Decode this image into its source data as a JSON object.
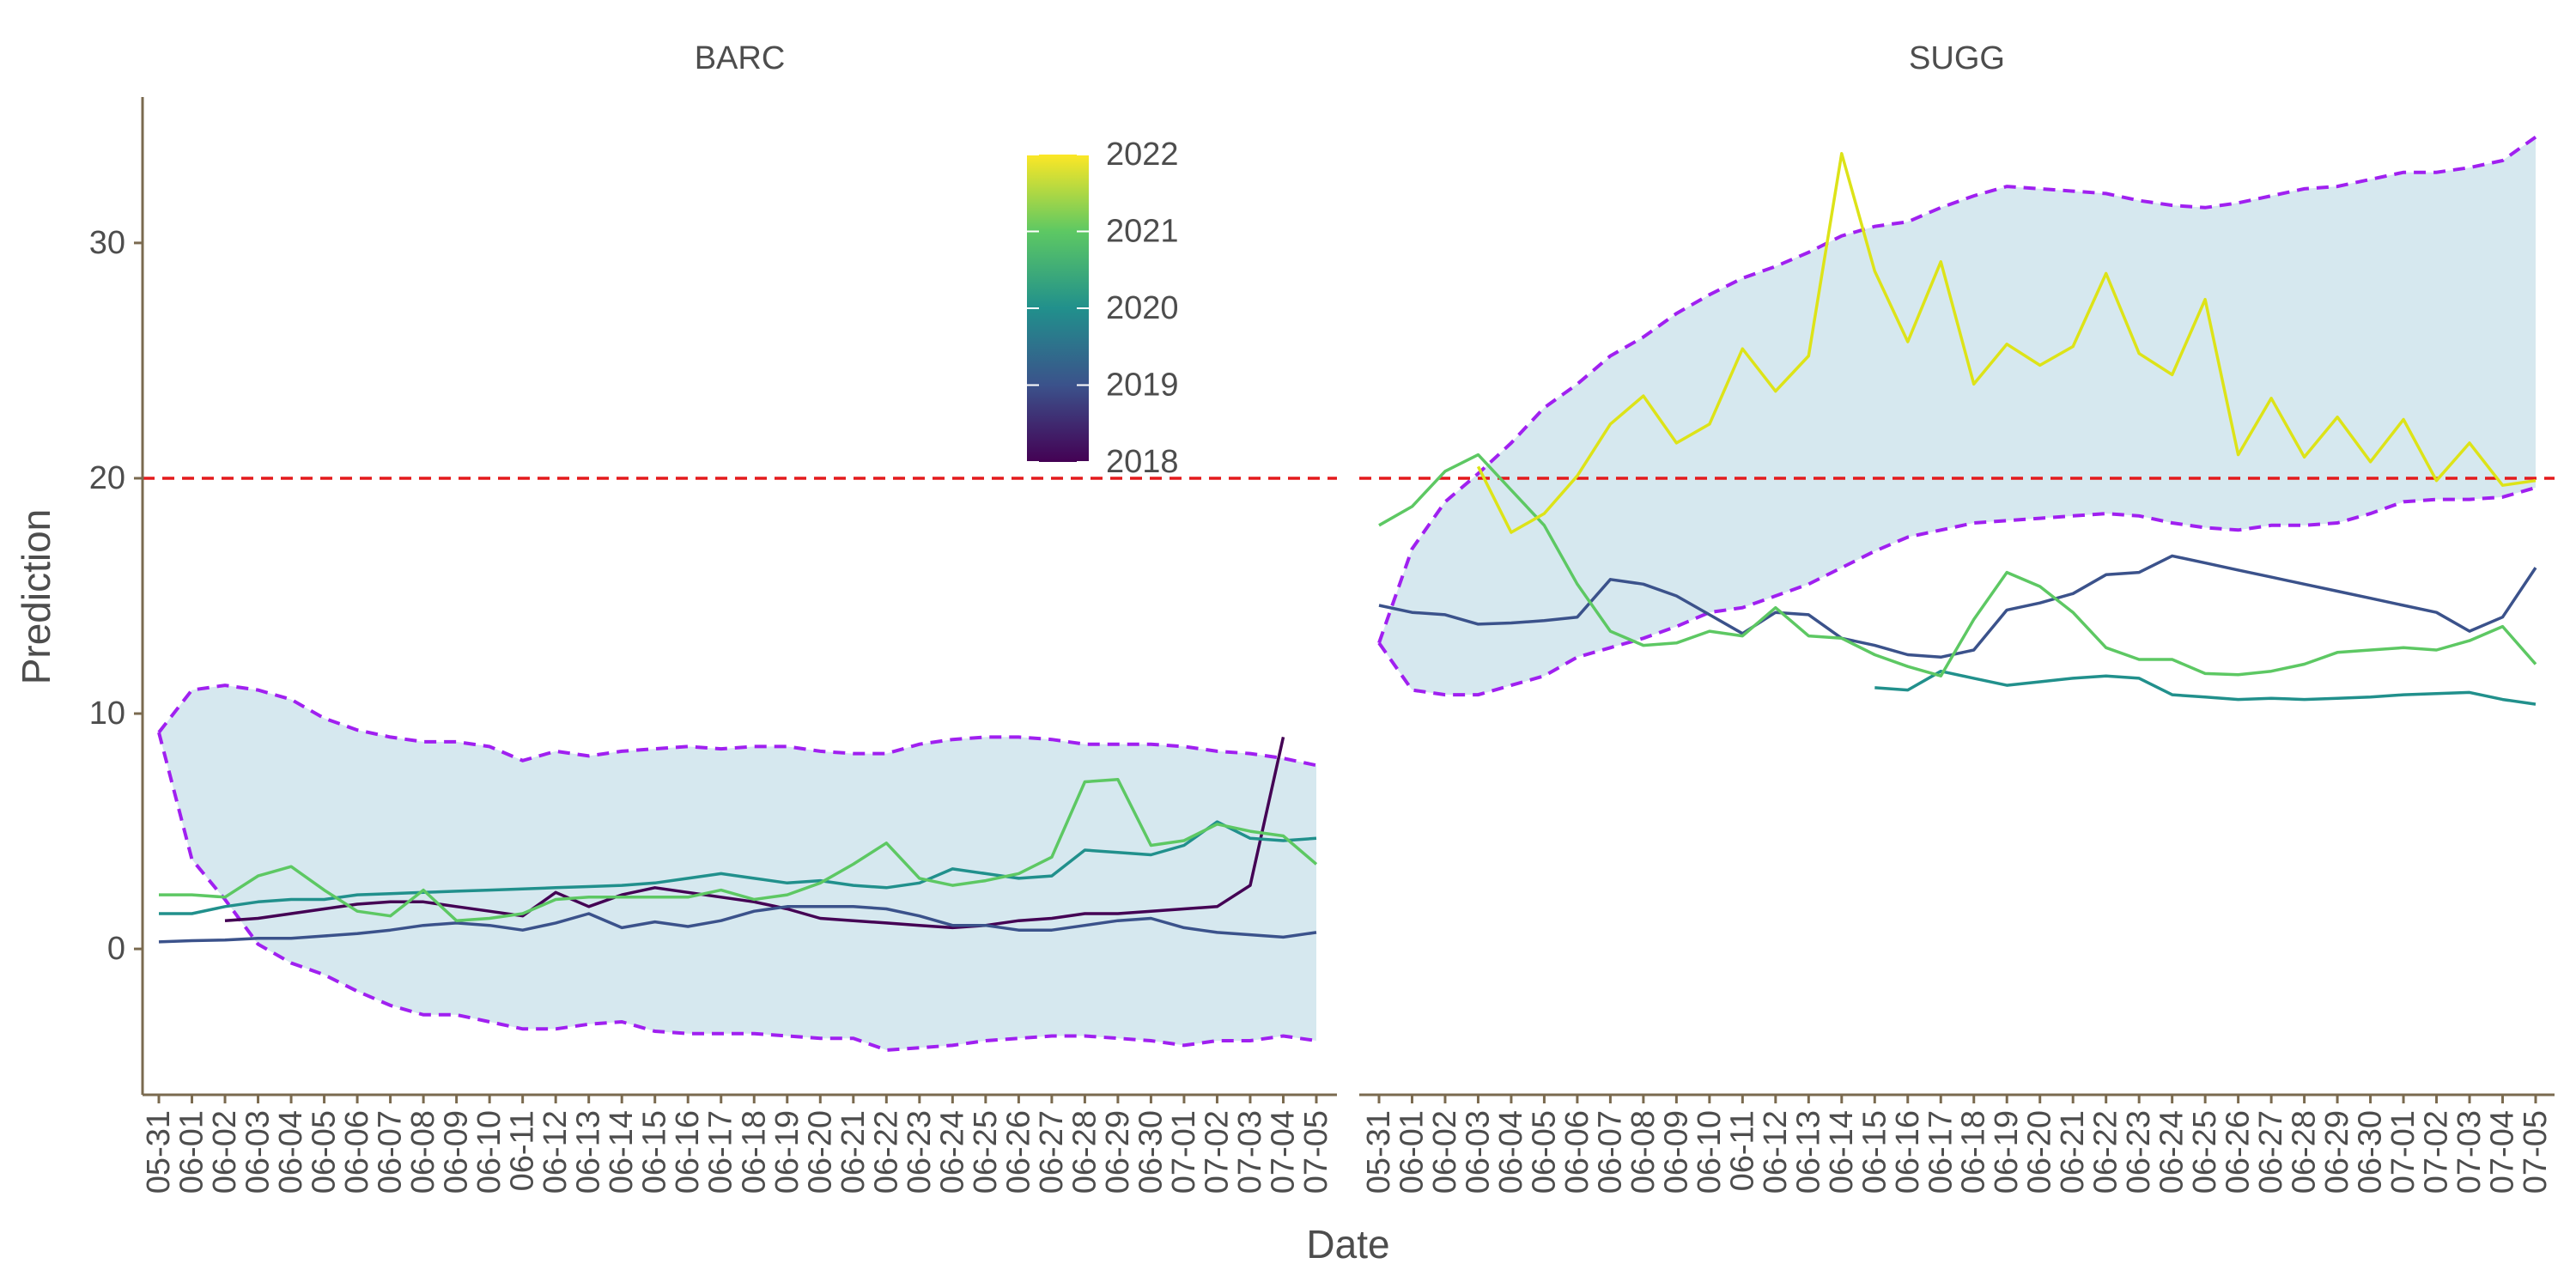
{
  "chart_data": {
    "type": "line",
    "xlabel": "Date",
    "ylabel": "Prediction",
    "ylim": [
      -6.2,
      36.2
    ],
    "y_ticks": [
      0,
      10,
      20,
      30
    ],
    "x_ticks": [
      "05-31",
      "06-01",
      "06-02",
      "06-03",
      "06-04",
      "06-05",
      "06-06",
      "06-07",
      "06-08",
      "06-09",
      "06-10",
      "06-11",
      "06-12",
      "06-13",
      "06-14",
      "06-15",
      "06-16",
      "06-17",
      "06-18",
      "06-19",
      "06-20",
      "06-21",
      "06-22",
      "06-23",
      "06-24",
      "06-25",
      "06-26",
      "06-27",
      "06-28",
      "06-29",
      "06-30",
      "07-01",
      "07-02",
      "07-03",
      "07-04",
      "07-05"
    ],
    "threshold": 20,
    "colors": {
      "threshold_line": "#e41a1c",
      "band_fill": "#d6e8ef",
      "band_edge": "#a020f0",
      "axis": "#7a6a4f",
      "2018": "#440154",
      "2019": "#3b528b",
      "2020": "#21908c",
      "2021": "#5dc863",
      "2022": "#dde318"
    },
    "legend": {
      "type": "colorbar",
      "placement": "top-center-left panel",
      "palette": "viridis",
      "labels": [
        "2022",
        "2021",
        "2020",
        "2019",
        "2018"
      ]
    },
    "grid": false,
    "panels": [
      {
        "title": "BARC",
        "band_upper": [
          9.2,
          11.0,
          11.2,
          11.0,
          10.6,
          9.8,
          9.3,
          9.0,
          8.8,
          8.8,
          8.6,
          8.0,
          8.4,
          8.2,
          8.4,
          8.5,
          8.6,
          8.5,
          8.6,
          8.6,
          8.4,
          8.3,
          8.3,
          8.7,
          8.9,
          9.0,
          9.0,
          8.9,
          8.7,
          8.7,
          8.7,
          8.6,
          8.4,
          8.3,
          8.1,
          7.8
        ],
        "band_lower": [
          9.2,
          3.8,
          2.1,
          0.2,
          -0.6,
          -1.1,
          -1.8,
          -2.4,
          -2.8,
          -2.8,
          -3.1,
          -3.4,
          -3.4,
          -3.2,
          -3.1,
          -3.5,
          -3.6,
          -3.6,
          -3.6,
          -3.7,
          -3.8,
          -3.8,
          -4.3,
          -4.2,
          -4.1,
          -3.9,
          -3.8,
          -3.7,
          -3.7,
          -3.8,
          -3.9,
          -4.1,
          -3.9,
          -3.9,
          -3.7,
          -3.9
        ],
        "series": [
          {
            "name": "2018",
            "values": [
              null,
              null,
              1.2,
              1.3,
              1.5,
              1.7,
              1.9,
              2.0,
              2.0,
              1.8,
              1.6,
              1.4,
              2.4,
              1.8,
              2.3,
              2.6,
              2.4,
              2.2,
              2.0,
              1.7,
              1.3,
              1.2,
              1.1,
              1.0,
              0.9,
              1.0,
              1.2,
              1.3,
              1.5,
              1.5,
              1.6,
              1.7,
              1.8,
              2.7,
              9.0,
              null
            ]
          },
          {
            "name": "2019",
            "values": [
              0.3,
              0.35,
              0.38,
              0.45,
              0.45,
              0.55,
              0.65,
              0.8,
              1.0,
              1.1,
              1.0,
              0.8,
              1.1,
              1.5,
              0.9,
              1.15,
              0.95,
              1.2,
              1.6,
              1.8,
              1.8,
              1.8,
              1.7,
              1.4,
              1.0,
              1.0,
              0.8,
              0.8,
              1.0,
              1.2,
              1.3,
              0.9,
              0.7,
              0.6,
              0.5,
              0.7
            ]
          },
          {
            "name": "2020",
            "values": [
              1.5,
              1.5,
              1.8,
              2.0,
              2.1,
              2.1,
              2.3,
              2.35,
              2.4,
              2.45,
              2.5,
              2.55,
              2.6,
              2.65,
              2.7,
              2.8,
              3.0,
              3.2,
              3.0,
              2.8,
              2.9,
              2.7,
              2.6,
              2.8,
              3.4,
              3.2,
              3.0,
              3.1,
              4.2,
              4.1,
              4.0,
              4.4,
              5.4,
              4.7,
              4.6,
              4.7
            ]
          },
          {
            "name": "2021",
            "values": [
              2.3,
              2.3,
              2.2,
              3.1,
              3.5,
              2.5,
              1.6,
              1.4,
              2.5,
              1.2,
              1.3,
              1.5,
              2.1,
              2.2,
              2.2,
              2.2,
              2.2,
              2.5,
              2.1,
              2.3,
              2.8,
              3.6,
              4.5,
              3.0,
              2.7,
              2.9,
              3.2,
              3.9,
              7.1,
              7.2,
              4.4,
              4.6,
              5.3,
              5.0,
              4.8,
              3.6
            ]
          }
        ]
      },
      {
        "title": "SUGG",
        "band_upper": [
          13.0,
          17.0,
          19.0,
          20.2,
          21.5,
          23.0,
          24.0,
          25.2,
          26.0,
          27.0,
          27.8,
          28.5,
          29.0,
          29.6,
          30.3,
          30.7,
          30.9,
          31.5,
          32.0,
          32.4,
          32.3,
          32.2,
          32.1,
          31.8,
          31.6,
          31.5,
          31.7,
          32.0,
          32.3,
          32.4,
          32.7,
          33.0,
          33.0,
          33.2,
          33.5,
          34.5
        ],
        "band_lower": [
          13.0,
          11.0,
          10.8,
          10.8,
          11.2,
          11.6,
          12.4,
          12.8,
          13.2,
          13.7,
          14.3,
          14.5,
          15.0,
          15.5,
          16.2,
          16.9,
          17.5,
          17.8,
          18.1,
          18.2,
          18.3,
          18.4,
          18.5,
          18.4,
          18.1,
          17.9,
          17.8,
          18.0,
          18.0,
          18.1,
          18.5,
          19.0,
          19.1,
          19.1,
          19.2,
          19.6
        ],
        "series": [
          {
            "name": "2019",
            "values": [
              14.6,
              14.3,
              14.2,
              13.8,
              13.85,
              13.95,
              14.1,
              15.7,
              15.5,
              15.0,
              14.2,
              13.4,
              14.3,
              14.2,
              13.2,
              12.9,
              12.5,
              12.4,
              12.7,
              14.4,
              14.7,
              15.1,
              15.9,
              16.0,
              16.7,
              16.4,
              16.1,
              15.8,
              15.5,
              15.2,
              14.9,
              14.6,
              14.3,
              13.5,
              14.1,
              16.2
            ]
          },
          {
            "name": "2020",
            "values": [
              null,
              null,
              null,
              null,
              null,
              null,
              null,
              null,
              null,
              null,
              null,
              null,
              null,
              null,
              null,
              11.1,
              11.0,
              11.8,
              11.5,
              11.2,
              11.35,
              11.5,
              11.6,
              11.5,
              10.8,
              10.7,
              10.6,
              10.65,
              10.6,
              10.65,
              10.7,
              10.8,
              10.85,
              10.9,
              10.6,
              10.4
            ]
          },
          {
            "name": "2021",
            "values": [
              18.0,
              18.8,
              20.3,
              21.0,
              19.5,
              18.0,
              15.5,
              13.5,
              12.9,
              13.0,
              13.5,
              13.3,
              14.5,
              13.3,
              13.2,
              12.5,
              12.0,
              11.6,
              14.0,
              16.0,
              15.4,
              14.3,
              12.8,
              12.3,
              12.3,
              11.7,
              11.65,
              11.8,
              12.1,
              12.6,
              12.7,
              12.8,
              12.7,
              13.1,
              13.7,
              12.1
            ]
          },
          {
            "name": "2022",
            "values": [
              null,
              null,
              null,
              20.5,
              17.7,
              18.5,
              20.1,
              22.3,
              23.5,
              21.5,
              22.3,
              25.5,
              23.7,
              25.2,
              33.8,
              28.8,
              25.8,
              29.2,
              24.0,
              25.7,
              24.8,
              25.6,
              28.7,
              25.3,
              24.4,
              27.6,
              21.0,
              23.4,
              20.9,
              22.6,
              20.7,
              22.5,
              19.9,
              21.5,
              19.7,
              19.9
            ]
          }
        ]
      }
    ]
  }
}
